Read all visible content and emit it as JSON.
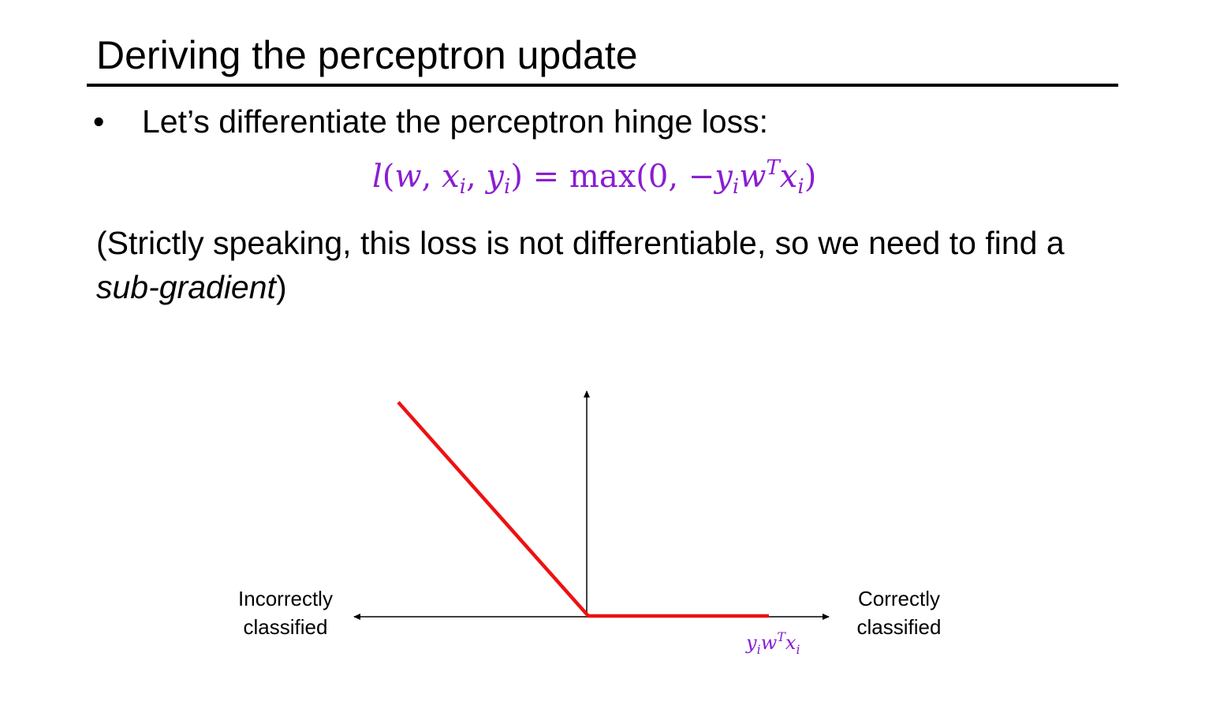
{
  "slide": {
    "title": "Deriving the perceptron update",
    "bullet_symbol": "•",
    "bullet_text": "Let’s differentiate the perceptron hinge loss:",
    "formula": {
      "l": "l",
      "open": "(",
      "w": "w",
      "comma1": ", ",
      "x": "x",
      "i1": "i",
      "comma2": ", ",
      "y": "y",
      "i2": "i",
      "close_eq": ") = ",
      "max": "max",
      "open2": "(0, −",
      "y2": "y",
      "i3": "i",
      "w2": "w",
      "T": "T",
      "x2": "x",
      "i4": "i",
      "close2": ")"
    },
    "note": {
      "part1": "(Strictly speaking, this loss is not differentiable, so we need to find a ",
      "emph": "sub-gradient",
      "part2": ")"
    }
  },
  "diagram": {
    "left_label_line1": "Incorrectly",
    "left_label_line2": "classified",
    "right_label_line1": "Correctly",
    "right_label_line2": "classified",
    "x_var": {
      "y": "y",
      "i1": "i",
      "w": "w",
      "T": "T",
      "x": "x",
      "i2": "i"
    },
    "colors": {
      "loss_curve": "#ee1111",
      "math_text": "#8a1ed1",
      "axes": "#000000"
    }
  }
}
